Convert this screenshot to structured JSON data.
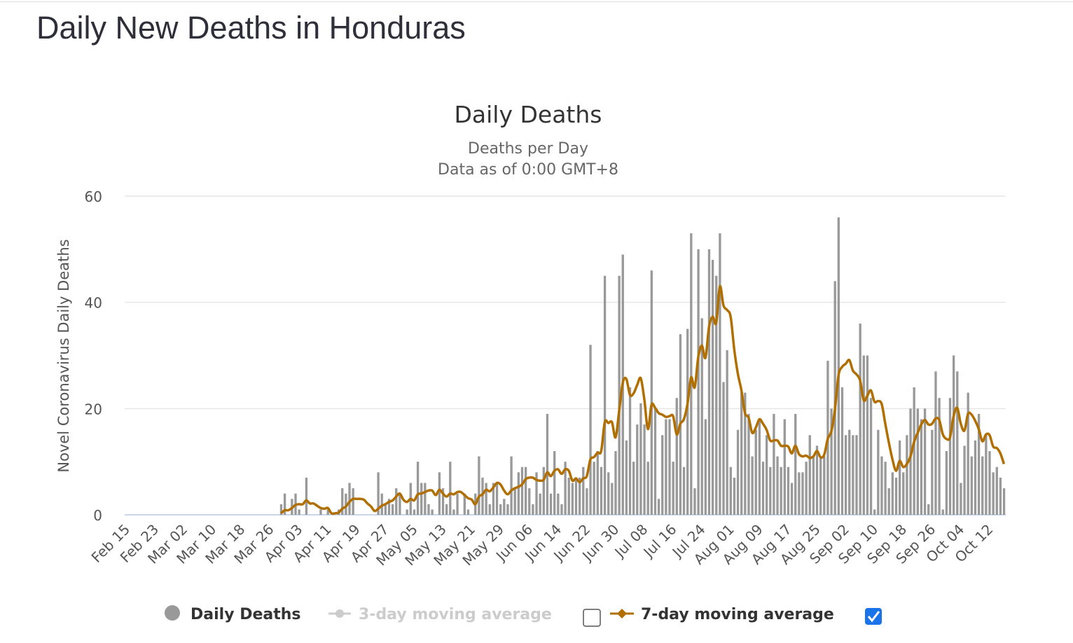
{
  "page": {
    "title": "Daily New Deaths in Honduras"
  },
  "colors": {
    "bars": "#999999",
    "ma7": "#b06f00",
    "ma3_inactive": "#cccccc",
    "grid": "#e6e6e6",
    "checkbox": "#1a73e8"
  },
  "chart_data": {
    "type": "bar",
    "title": "Daily Deaths",
    "subtitle": [
      "Deaths per Day",
      "Data as of 0:00 GMT+8"
    ],
    "xlabel": "",
    "ylabel": "Novel Coronavirus Daily Deaths",
    "ylim": [
      0,
      60
    ],
    "yticks": [
      "0",
      "20",
      "40",
      "60"
    ],
    "ytick_values": [
      0,
      20,
      40,
      60
    ],
    "grid": true,
    "start_date": "Feb 15",
    "tick_every_days": 8,
    "xticks": [
      "Feb 15",
      "Feb 23",
      "Mar 02",
      "Mar 10",
      "Mar 18",
      "Mar 26",
      "Apr 03",
      "Apr 11",
      "Apr 19",
      "Apr 27",
      "May 05",
      "May 13",
      "May 21",
      "May 29",
      "Jun 06",
      "Jun 14",
      "Jun 22",
      "Jun 30",
      "Jul 08",
      "Jul 16",
      "Jul 24",
      "Aug 01",
      "Aug 09",
      "Aug 17",
      "Aug 25",
      "Sep 02",
      "Sep 10",
      "Sep 18",
      "Sep 26",
      "Oct 04",
      "Oct 12"
    ],
    "series": [
      {
        "name": "Daily Deaths",
        "type": "bar",
        "values": [
          0,
          0,
          0,
          0,
          0,
          0,
          0,
          0,
          0,
          0,
          0,
          0,
          0,
          0,
          0,
          0,
          0,
          0,
          0,
          0,
          0,
          0,
          0,
          0,
          0,
          0,
          0,
          0,
          0,
          0,
          0,
          0,
          0,
          0,
          0,
          0,
          0,
          0,
          0,
          0,
          0,
          0,
          0,
          2,
          4,
          0,
          3,
          4,
          1,
          0,
          7,
          0,
          0,
          0,
          1,
          0,
          1,
          0,
          0,
          1,
          5,
          4,
          6,
          5,
          0,
          0,
          0,
          0,
          0,
          0,
          8,
          4,
          2,
          3,
          2,
          5,
          4,
          0,
          1,
          6,
          1,
          10,
          6,
          6,
          2,
          1,
          0,
          8,
          5,
          2,
          10,
          1,
          4,
          0,
          4,
          1,
          0,
          4,
          11,
          7,
          6,
          2,
          6,
          6,
          2,
          3,
          2,
          11,
          5,
          8,
          9,
          9,
          5,
          2,
          8,
          4,
          9,
          19,
          4,
          12,
          4,
          2,
          10,
          7,
          6,
          7,
          7,
          9,
          5,
          32,
          10,
          12,
          9,
          45,
          8,
          6,
          12,
          45,
          49,
          14,
          24,
          10,
          17,
          21,
          17,
          10,
          46,
          20,
          3,
          15,
          18,
          18,
          10,
          22,
          34,
          9,
          35,
          53,
          5,
          50,
          37,
          18,
          50,
          48,
          45,
          53,
          25,
          31,
          9,
          7,
          16,
          23,
          23,
          19,
          11,
          16,
          18,
          10,
          15,
          9,
          19,
          11,
          9,
          18,
          9,
          6,
          19,
          8,
          8,
          10,
          15,
          11,
          13,
          11,
          11,
          29,
          20,
          44,
          56,
          24,
          15,
          16,
          15,
          15,
          36,
          30,
          30,
          22,
          1,
          16,
          11,
          10,
          5,
          8,
          7,
          14,
          8,
          15,
          20,
          24,
          20,
          18,
          20,
          2,
          16,
          27,
          22,
          1,
          12,
          22,
          30,
          27,
          6,
          13,
          23,
          11,
          14,
          19,
          11,
          15,
          12,
          8,
          9,
          7,
          5
        ]
      },
      {
        "name": "3-day moving average",
        "type": "line",
        "visible": false
      },
      {
        "name": "7-day moving average",
        "type": "line",
        "visible": true,
        "window": 7,
        "start_index": 43
      }
    ],
    "legend": {
      "placement": "bottom",
      "ma3_checked": false,
      "ma7_checked": true
    }
  }
}
